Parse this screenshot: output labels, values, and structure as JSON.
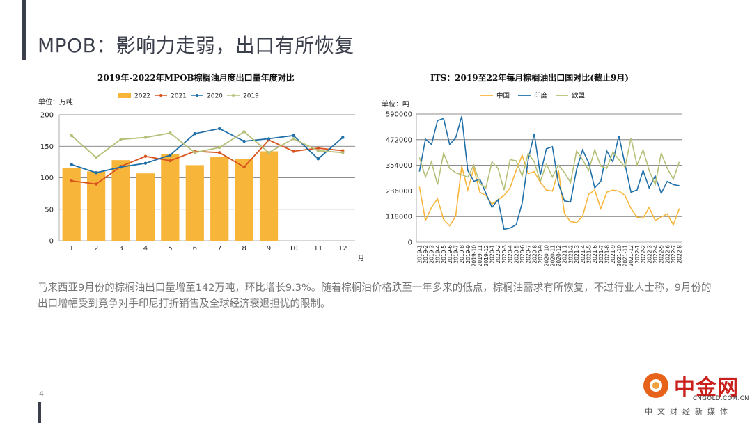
{
  "page": {
    "title": "MPOB：影响力走弱，出口有所恢复",
    "paragraph": "马来西亚9月份的棕榈油出口量增至142万吨，环比增长9.3%。随着棕榈油价格跌至一年多来的低点，棕榈油需求有所恢复，不过行业人士称，9月份的出口增幅受到竞争对手印尼打折销售及全球经济衰退担忧的限制。",
    "page_number": "4"
  },
  "logo": {
    "name": "中金网",
    "url": "CNGOLD.COM.CN",
    "slogan": "中文财经新媒体"
  },
  "chart_data": [
    {
      "type": "bar",
      "title": "2019年-2022年MPOB棕榈油月度出口量年度对比",
      "unit_label": "单位：万吨",
      "x_unit": "月",
      "categories": [
        "1",
        "2",
        "3",
        "4",
        "5",
        "6",
        "7",
        "8",
        "9",
        "10",
        "11",
        "12"
      ],
      "ylim": [
        0,
        200
      ],
      "yticks": [
        0,
        50,
        100,
        150,
        200
      ],
      "grid": true,
      "legend_position": "top",
      "series": [
        {
          "name": "2022",
          "type": "bar",
          "color": "#f7b53a",
          "values": [
            116,
            110,
            128,
            107,
            138,
            120,
            133,
            130,
            142,
            null,
            null,
            null
          ]
        },
        {
          "name": "2021",
          "type": "line",
          "color": "#d9531e",
          "values": [
            95,
            90,
            118,
            134,
            127,
            142,
            140,
            117,
            160,
            142,
            147,
            143
          ]
        },
        {
          "name": "2020",
          "type": "line",
          "color": "#1f6fa8",
          "values": [
            121,
            108,
            117,
            123,
            136,
            170,
            178,
            158,
            162,
            167,
            130,
            164
          ]
        },
        {
          "name": "2019",
          "type": "line",
          "color": "#b5bf77",
          "values": [
            167,
            132,
            161,
            164,
            171,
            140,
            148,
            173,
            140,
            162,
            143,
            140
          ]
        }
      ]
    },
    {
      "type": "line",
      "title": "ITS：2019至22年每月棕榈油出口国对比(截止9月)",
      "unit_label": "单位：吨",
      "categories": [
        "2019-1",
        "2019-2",
        "2019-3",
        "2019-4",
        "2019-5",
        "2019-6",
        "2019-7",
        "2019-8",
        "2019-9",
        "2019-10",
        "2019-11",
        "2019-12",
        "2020-1",
        "2020-2",
        "2020-3",
        "2020-4",
        "2020-5",
        "2020-6",
        "2020-7",
        "2020-8",
        "2020-9",
        "2020-10",
        "2020-11",
        "2020-12",
        "2021-1",
        "2021-2",
        "2021-3",
        "2021-4",
        "2021-5",
        "2021-6",
        "2021-7",
        "2021-8",
        "2021-9",
        "2021-10",
        "2021-11",
        "2021-12",
        "2022-1",
        "2022-2",
        "2022-3",
        "2022-4",
        "2022-5",
        "2022-6",
        "2022-7",
        "2022-8"
      ],
      "ylim": [
        0,
        590000
      ],
      "yticks": [
        0,
        118000,
        236000,
        354000,
        472000,
        590000
      ],
      "ytick_labels": [
        "0",
        "118000",
        "236000",
        "354000",
        "472000",
        "590000"
      ],
      "grid": true,
      "legend_position": "top",
      "series": [
        {
          "name": "中国",
          "color": "#f7b53a",
          "values": [
            255000,
            100000,
            160000,
            200000,
            105000,
            75000,
            120000,
            350000,
            240000,
            340000,
            230000,
            215000,
            175000,
            195000,
            215000,
            250000,
            330000,
            400000,
            315000,
            325000,
            275000,
            240000,
            235000,
            330000,
            130000,
            95000,
            90000,
            120000,
            220000,
            240000,
            155000,
            230000,
            240000,
            235000,
            215000,
            155000,
            115000,
            110000,
            160000,
            100000,
            115000,
            130000,
            80000,
            155000
          ]
        },
        {
          "name": "印度",
          "color": "#1f6fa8",
          "values": [
            325000,
            475000,
            450000,
            560000,
            570000,
            450000,
            480000,
            580000,
            330000,
            280000,
            290000,
            225000,
            160000,
            195000,
            60000,
            65000,
            80000,
            180000,
            380000,
            500000,
            310000,
            430000,
            440000,
            270000,
            190000,
            185000,
            335000,
            425000,
            365000,
            250000,
            280000,
            420000,
            370000,
            490000,
            360000,
            230000,
            240000,
            330000,
            250000,
            305000,
            225000,
            280000,
            265000,
            260000
          ]
        },
        {
          "name": "欧盟",
          "color": "#b5bf77",
          "values": [
            390000,
            300000,
            370000,
            265000,
            410000,
            340000,
            320000,
            310000,
            300000,
            355000,
            270000,
            250000,
            370000,
            340000,
            240000,
            380000,
            375000,
            305000,
            410000,
            370000,
            280000,
            360000,
            300000,
            355000,
            320000,
            275000,
            420000,
            380000,
            330000,
            425000,
            350000,
            340000,
            415000,
            380000,
            345000,
            480000,
            355000,
            425000,
            330000,
            265000,
            410000,
            340000,
            290000,
            370000
          ]
        }
      ]
    }
  ]
}
